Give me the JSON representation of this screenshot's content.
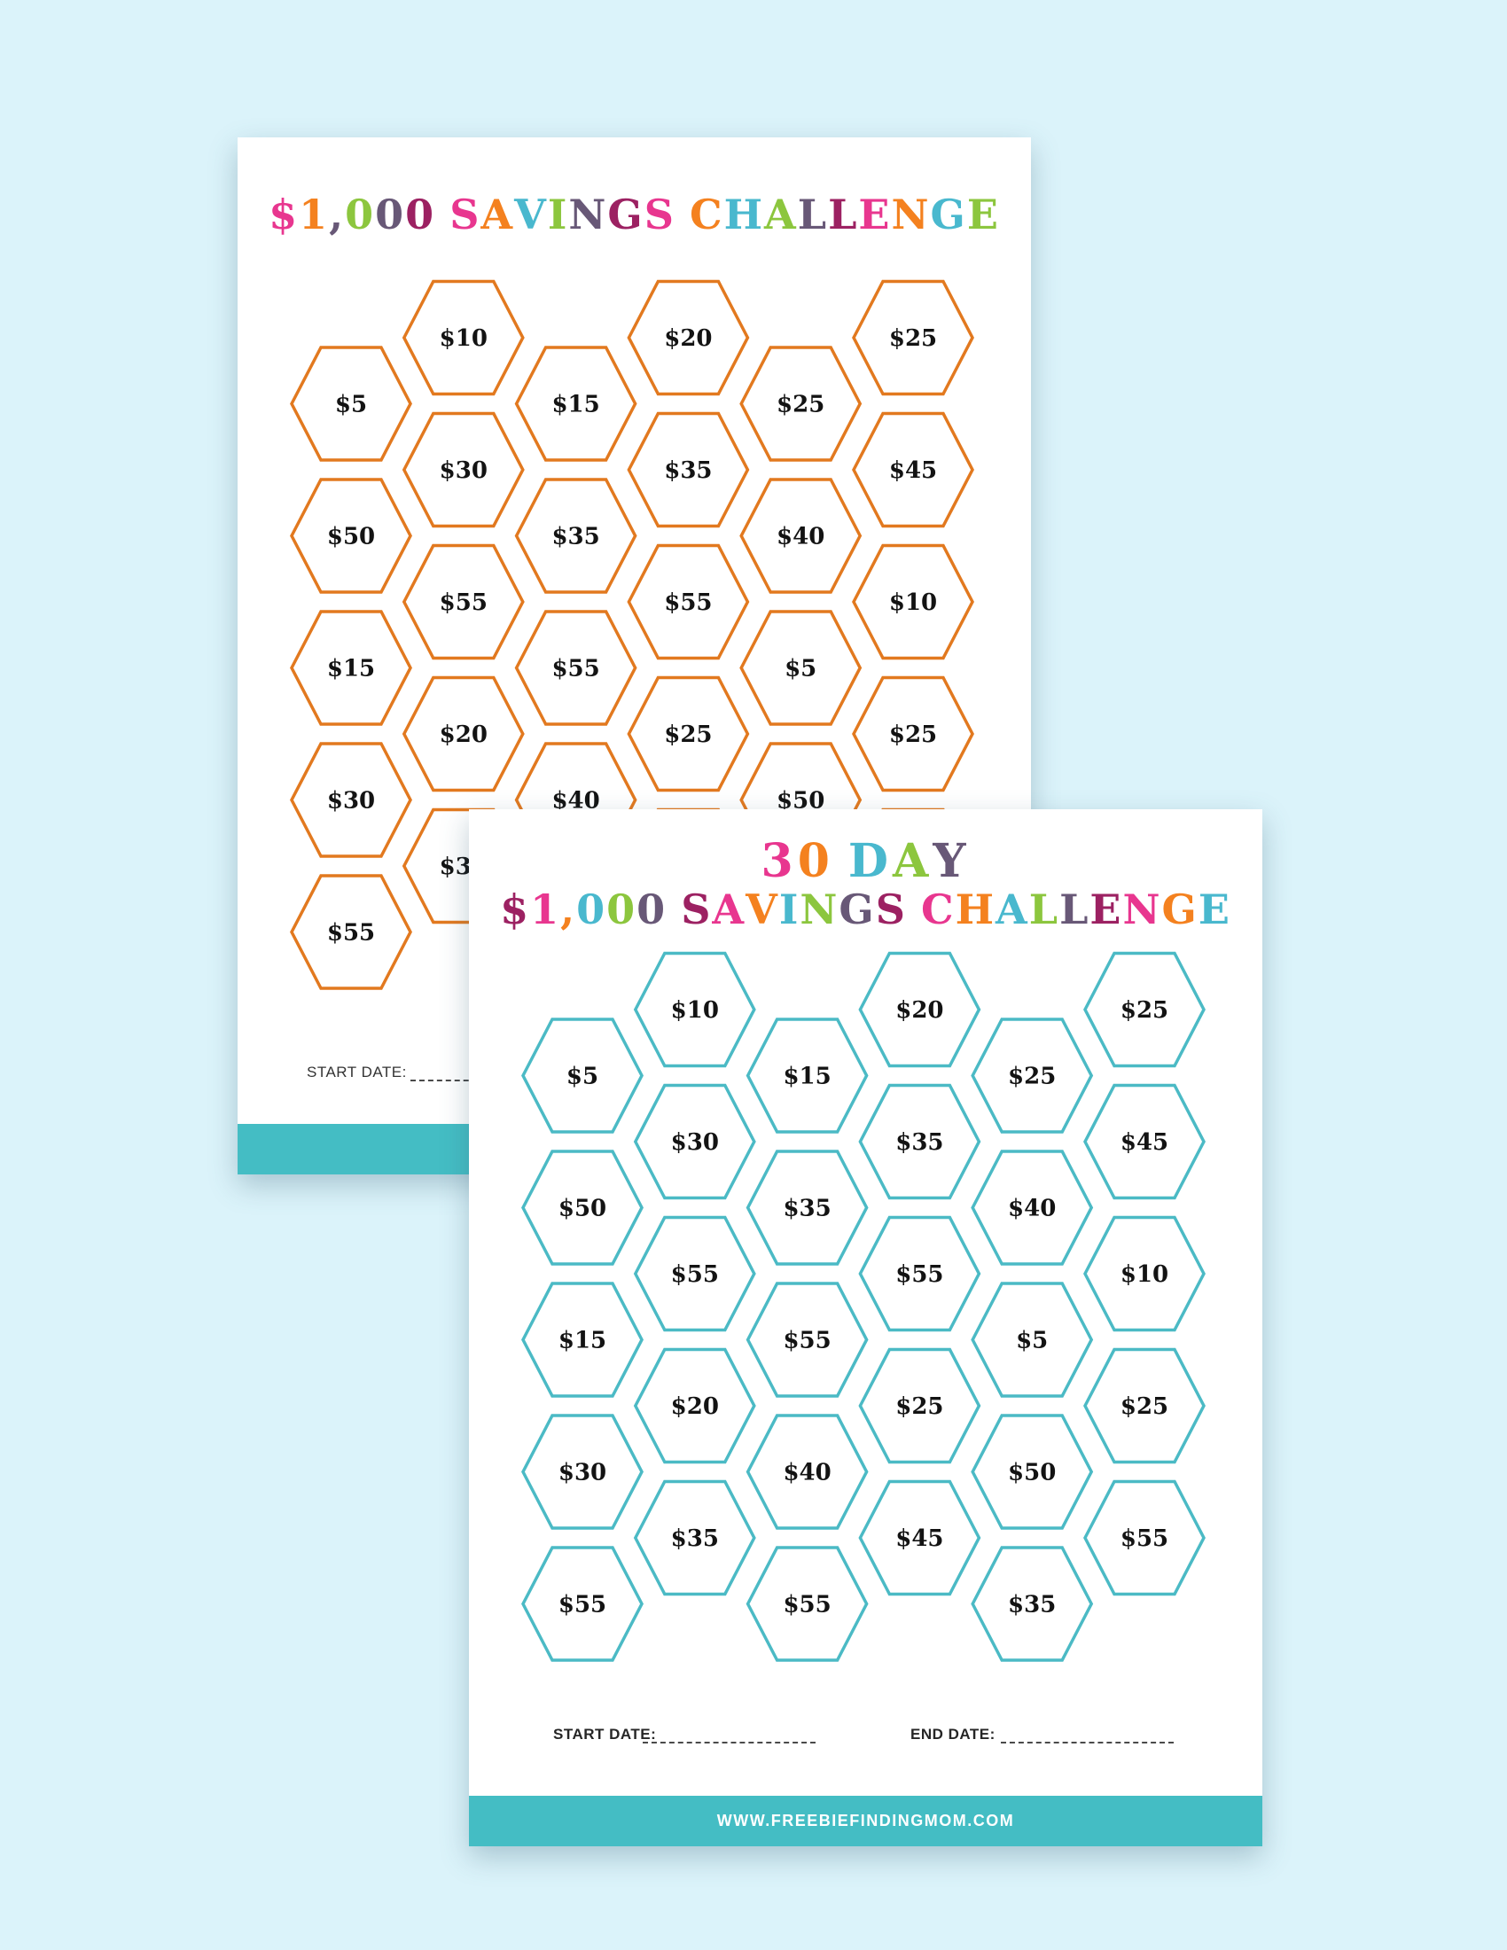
{
  "canvas_background": "#DBF3FA",
  "palette": {
    "pink": "#E8368F",
    "orange": "#F4811F",
    "teal": "#49B8CE",
    "green": "#8CC63E",
    "purple": "#685877",
    "maroon": "#9C2162",
    "hex_orange": "#E2791F",
    "hex_teal": "#4BBAC5",
    "bar_teal": "#44BDC4",
    "value_black": "#131313"
  },
  "hex_rows": [
    [
      "$10",
      "$20",
      "$25"
    ],
    [
      "$5",
      "$15",
      "$25"
    ],
    [
      "$30",
      "$35",
      "$45"
    ],
    [
      "$50",
      "$35",
      "$40"
    ],
    [
      "$55",
      "$55",
      "$10"
    ],
    [
      "$15",
      "$55",
      "$5"
    ],
    [
      "$20",
      "$25",
      "$25"
    ],
    [
      "$30",
      "$40",
      "$50"
    ],
    [
      "$35",
      "$45",
      "$55"
    ],
    [
      "$55",
      "$55",
      "$35"
    ]
  ],
  "pages": [
    {
      "id": "back",
      "title_text": "$1,000 SAVINGS CHALLENGE",
      "title_chars": [
        [
          "$",
          "pink"
        ],
        [
          "1",
          "orange"
        ],
        [
          ",",
          "purple"
        ],
        [
          "0",
          "green"
        ],
        [
          "0",
          "purple"
        ],
        [
          "0",
          "maroon"
        ],
        [
          " ",
          ""
        ],
        [
          "S",
          "pink"
        ],
        [
          "A",
          "orange"
        ],
        [
          "V",
          "teal"
        ],
        [
          "I",
          "green"
        ],
        [
          "N",
          "purple"
        ],
        [
          "G",
          "maroon"
        ],
        [
          "S",
          "pink"
        ],
        [
          " ",
          ""
        ],
        [
          "C",
          "orange"
        ],
        [
          "H",
          "teal"
        ],
        [
          "A",
          "green"
        ],
        [
          "L",
          "purple"
        ],
        [
          "L",
          "maroon"
        ],
        [
          "E",
          "pink"
        ],
        [
          "N",
          "orange"
        ],
        [
          "G",
          "teal"
        ],
        [
          "E",
          "green"
        ]
      ],
      "hex_stroke": "hex_orange",
      "start_date_label": "START DATE:"
    },
    {
      "id": "front",
      "title_line1_text": "30 DAY",
      "title_line1_chars": [
        [
          "3",
          "pink"
        ],
        [
          "0",
          "orange"
        ],
        [
          " ",
          ""
        ],
        [
          "D",
          "teal"
        ],
        [
          "A",
          "green"
        ],
        [
          "Y",
          "purple"
        ]
      ],
      "title_line2_text": "$1,000 SAVINGS CHALLENGE",
      "title_line2_chars": [
        [
          "$",
          "maroon"
        ],
        [
          "1",
          "pink"
        ],
        [
          ",",
          "orange"
        ],
        [
          "0",
          "teal"
        ],
        [
          "0",
          "green"
        ],
        [
          "0",
          "purple"
        ],
        [
          " ",
          ""
        ],
        [
          "S",
          "maroon"
        ],
        [
          "A",
          "pink"
        ],
        [
          "V",
          "orange"
        ],
        [
          "I",
          "teal"
        ],
        [
          "N",
          "green"
        ],
        [
          "G",
          "purple"
        ],
        [
          "S",
          "maroon"
        ],
        [
          " ",
          ""
        ],
        [
          "C",
          "pink"
        ],
        [
          "H",
          "orange"
        ],
        [
          "A",
          "teal"
        ],
        [
          "L",
          "green"
        ],
        [
          "L",
          "purple"
        ],
        [
          "E",
          "maroon"
        ],
        [
          "N",
          "pink"
        ],
        [
          "G",
          "orange"
        ],
        [
          "E",
          "teal"
        ]
      ],
      "hex_stroke": "hex_teal",
      "start_date_label": "START DATE:",
      "end_date_label": "END DATE:",
      "footer_text": "WWW.FREEBIEFINDINGMOM.COM"
    }
  ]
}
